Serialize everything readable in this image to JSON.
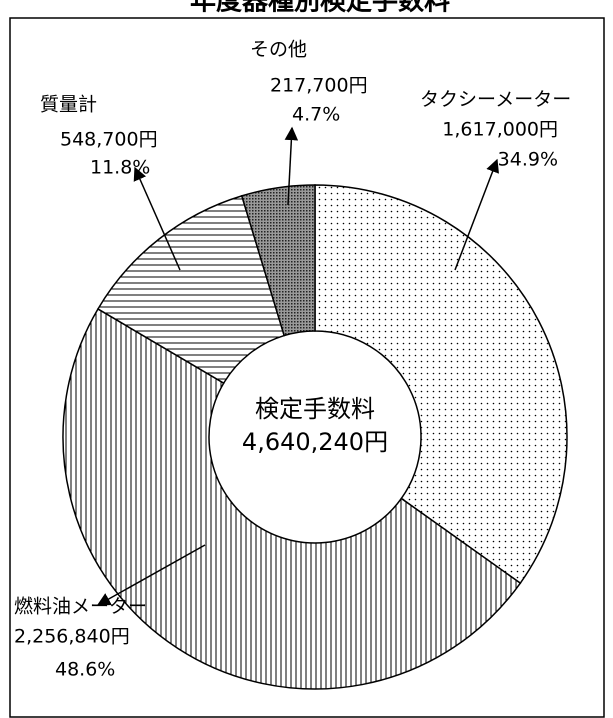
{
  "chart_data": {
    "type": "donut",
    "title": "年度器種別検定手数料",
    "center_label": "検定手数料",
    "total": {
      "value": 4640240,
      "label": "4,640,240円"
    },
    "categories": [
      "タクシーメーター",
      "燃料油メーター",
      "質量計",
      "その他"
    ],
    "values": [
      1617000,
      2256840,
      548700,
      217700
    ],
    "value_labels": [
      "1,617,000円",
      "2,256,840円",
      "548,700円",
      "217,700円"
    ],
    "percents": [
      34.9,
      48.6,
      11.8,
      4.7
    ],
    "percent_labels": [
      "34.9%",
      "48.6%",
      "11.8%",
      "4.7%"
    ],
    "patterns": [
      "dots",
      "vertical-lines",
      "horizontal-lines",
      "crosshatch"
    ]
  }
}
